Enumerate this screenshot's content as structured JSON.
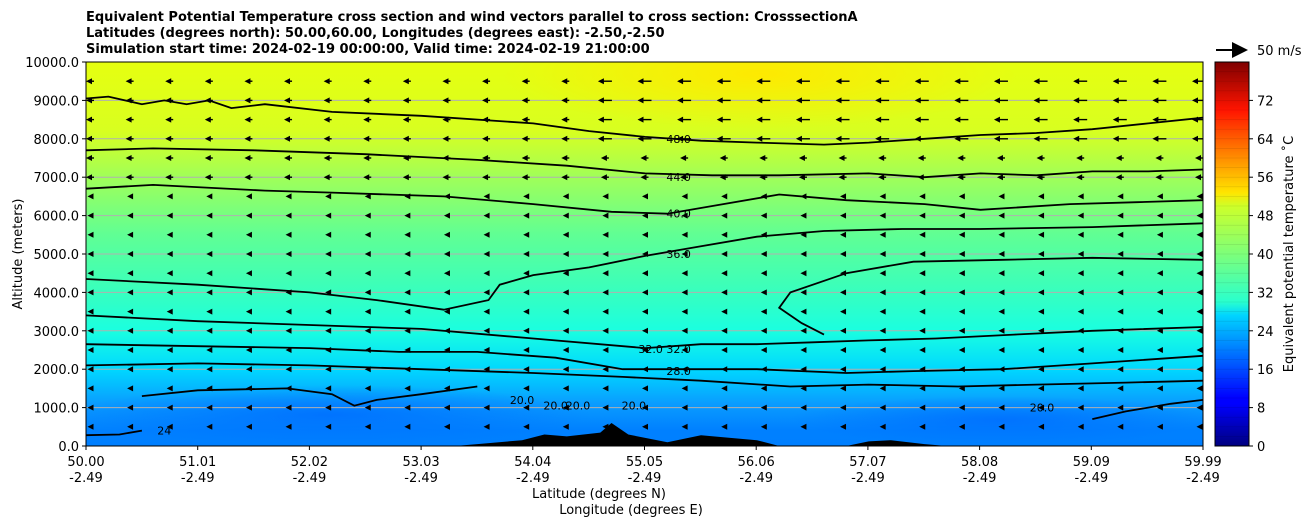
{
  "chart_data": {
    "type": "heatmap",
    "title_lines": [
      "Equivalent Potential Temperature cross section and wind vectors parallel to cross section: CrosssectionA",
      "Latitudes (degrees north): 50.00,60.00, Longitudes (degrees east): -2.50,-2.50",
      "Simulation start time: 2024-02-19 00:00:00, Valid time: 2024-02-19 21:00:00"
    ],
    "xlabel_lat": "Latitude (degrees N)",
    "xlabel_lon": "Longitude (degrees E)",
    "ylabel": "Altitude (meters)",
    "ylim": [
      0,
      10000
    ],
    "xlim": [
      50.0,
      59.99
    ],
    "grid": "horizontal",
    "x_tick_lat": [
      "50.00",
      "51.01",
      "52.02",
      "53.03",
      "54.04",
      "55.05",
      "56.06",
      "57.07",
      "58.08",
      "59.09",
      "59.99"
    ],
    "x_tick_lon": [
      "-2.49",
      "-2.49",
      "-2.49",
      "-2.49",
      "-2.49",
      "-2.49",
      "-2.49",
      "-2.49",
      "-2.49",
      "-2.49",
      "-2.49"
    ],
    "y_ticks": [
      "0.0",
      "1000.0",
      "2000.0",
      "3000.0",
      "4000.0",
      "5000.0",
      "6000.0",
      "7000.0",
      "8000.0",
      "9000.0",
      "10000.0"
    ],
    "y_tick_values": [
      0,
      1000,
      2000,
      3000,
      4000,
      5000,
      6000,
      7000,
      8000,
      9000,
      10000
    ],
    "colorbar": {
      "label": "Equivalent potential temperature ˚C",
      "range": [
        0,
        80
      ],
      "ticks": [
        "0",
        "8",
        "16",
        "24",
        "32",
        "40",
        "48",
        "56",
        "64",
        "72"
      ],
      "tick_values": [
        0,
        8,
        16,
        24,
        32,
        40,
        48,
        56,
        64,
        72
      ],
      "colormap": "jet"
    },
    "wind_key_label": "50 m/s",
    "contour_labels": [
      {
        "text": "48.0",
        "lat": 55.3,
        "alt": 8000
      },
      {
        "text": "44.0",
        "lat": 55.3,
        "alt": 7000
      },
      {
        "text": "40.0",
        "lat": 55.3,
        "alt": 6050
      },
      {
        "text": "36.0",
        "lat": 55.3,
        "alt": 5000
      },
      {
        "text": "32.0",
        "lat": 55.3,
        "alt": 2520
      },
      {
        "text": "32.0",
        "lat": 55.05,
        "alt": 2520
      },
      {
        "text": "28.0",
        "lat": 55.3,
        "alt": 1950
      },
      {
        "text": "20.0",
        "lat": 54.4,
        "alt": 1050
      },
      {
        "text": "20.0",
        "lat": 54.2,
        "alt": 1050
      },
      {
        "text": "20.0",
        "lat": 54.9,
        "alt": 1050
      },
      {
        "text": "20.0",
        "lat": 53.9,
        "alt": 1200
      },
      {
        "text": "20.0",
        "lat": 58.55,
        "alt": 1000
      },
      {
        "text": "24",
        "lat": 50.7,
        "alt": 400
      }
    ],
    "series": [
      {
        "level": 48,
        "points": [
          [
            50.0,
            9050
          ],
          [
            50.2,
            9100
          ],
          [
            50.5,
            8900
          ],
          [
            50.7,
            9000
          ],
          [
            50.9,
            8900
          ],
          [
            51.1,
            9000
          ],
          [
            51.3,
            8800
          ],
          [
            51.6,
            8900
          ],
          [
            52.2,
            8700
          ],
          [
            53.0,
            8600
          ],
          [
            54.0,
            8400
          ],
          [
            54.5,
            8200
          ],
          [
            55.0,
            8050
          ],
          [
            55.5,
            7950
          ],
          [
            56.0,
            7900
          ],
          [
            56.6,
            7850
          ],
          [
            57.0,
            7900
          ],
          [
            57.5,
            8000
          ],
          [
            58.0,
            8100
          ],
          [
            58.5,
            8150
          ],
          [
            59.0,
            8250
          ],
          [
            59.5,
            8400
          ],
          [
            59.99,
            8550
          ]
        ]
      },
      {
        "level": 44,
        "points": [
          [
            50.0,
            7700
          ],
          [
            50.6,
            7750
          ],
          [
            51.5,
            7700
          ],
          [
            52.5,
            7600
          ],
          [
            53.5,
            7450
          ],
          [
            54.3,
            7300
          ],
          [
            55.0,
            7100
          ],
          [
            55.6,
            7050
          ],
          [
            56.2,
            7050
          ],
          [
            57.0,
            7100
          ],
          [
            57.5,
            7000
          ],
          [
            58.0,
            7100
          ],
          [
            58.5,
            7050
          ],
          [
            59.0,
            7150
          ],
          [
            59.5,
            7150
          ],
          [
            59.99,
            7200
          ]
        ]
      },
      {
        "level": 40,
        "points": [
          [
            50.0,
            6700
          ],
          [
            50.6,
            6800
          ],
          [
            51.6,
            6650
          ],
          [
            52.2,
            6600
          ],
          [
            53.2,
            6500
          ],
          [
            54.0,
            6300
          ],
          [
            54.7,
            6100
          ],
          [
            55.2,
            6050
          ],
          [
            55.7,
            6300
          ],
          [
            56.2,
            6550
          ],
          [
            56.8,
            6400
          ],
          [
            57.5,
            6300
          ],
          [
            58.0,
            6150
          ],
          [
            58.8,
            6300
          ],
          [
            59.4,
            6350
          ],
          [
            59.99,
            6400
          ]
        ]
      },
      {
        "level": 36,
        "points": [
          [
            50.0,
            4350
          ],
          [
            51.0,
            4200
          ],
          [
            52.0,
            4000
          ],
          [
            52.6,
            3800
          ],
          [
            53.2,
            3550
          ],
          [
            53.6,
            3800
          ],
          [
            53.7,
            4200
          ],
          [
            54.0,
            4450
          ],
          [
            54.5,
            4650
          ],
          [
            55.0,
            4950
          ],
          [
            55.5,
            5200
          ],
          [
            56.0,
            5450
          ],
          [
            56.6,
            5600
          ],
          [
            57.3,
            5650
          ],
          [
            58.0,
            5650
          ],
          [
            59.0,
            5700
          ],
          [
            59.99,
            5800
          ]
        ]
      },
      {
        "level": 34,
        "points": [
          [
            56.6,
            2900
          ],
          [
            56.4,
            3200
          ],
          [
            56.2,
            3600
          ],
          [
            56.3,
            4000
          ],
          [
            56.8,
            4500
          ],
          [
            57.4,
            4800
          ],
          [
            58.2,
            4850
          ],
          [
            59.0,
            4900
          ],
          [
            59.99,
            4850
          ]
        ]
      },
      {
        "level": 32,
        "points": [
          [
            50.0,
            3400
          ],
          [
            51.0,
            3250
          ],
          [
            52.0,
            3150
          ],
          [
            53.0,
            3050
          ],
          [
            54.0,
            2800
          ],
          [
            55.0,
            2550
          ],
          [
            55.5,
            2650
          ],
          [
            56.0,
            2650
          ],
          [
            56.5,
            2700
          ],
          [
            57.0,
            2750
          ],
          [
            57.6,
            2800
          ],
          [
            58.3,
            2900
          ],
          [
            59.0,
            3000
          ],
          [
            59.99,
            3100
          ]
        ]
      },
      {
        "level": 28,
        "points": [
          [
            50.0,
            2650
          ],
          [
            51.0,
            2600
          ],
          [
            52.0,
            2550
          ],
          [
            52.8,
            2450
          ],
          [
            53.5,
            2450
          ],
          [
            54.2,
            2300
          ],
          [
            54.8,
            2000
          ],
          [
            55.4,
            2000
          ],
          [
            56.0,
            2000
          ],
          [
            56.8,
            1900
          ],
          [
            57.4,
            1950
          ],
          [
            58.2,
            2000
          ],
          [
            59.0,
            2150
          ],
          [
            59.99,
            2350
          ]
        ]
      },
      {
        "level": 26,
        "points": [
          [
            50.0,
            2100
          ],
          [
            51.0,
            2150
          ],
          [
            52.0,
            2100
          ],
          [
            53.0,
            2000
          ],
          [
            54.0,
            1900
          ],
          [
            54.8,
            1800
          ],
          [
            55.5,
            1700
          ],
          [
            56.3,
            1550
          ],
          [
            57.0,
            1600
          ],
          [
            57.8,
            1550
          ],
          [
            58.5,
            1600
          ],
          [
            59.3,
            1650
          ],
          [
            59.99,
            1700
          ]
        ]
      },
      {
        "level": 20,
        "points": [
          [
            50.5,
            1300
          ],
          [
            51.0,
            1450
          ],
          [
            51.8,
            1500
          ],
          [
            52.2,
            1350
          ],
          [
            52.4,
            1050
          ],
          [
            52.6,
            1200
          ],
          [
            53.0,
            1350
          ],
          [
            53.5,
            1550
          ]
        ]
      },
      {
        "level": 20,
        "points": [
          [
            59.0,
            700
          ],
          [
            59.3,
            900
          ],
          [
            59.7,
            1100
          ],
          [
            59.99,
            1200
          ]
        ]
      },
      {
        "level": 20,
        "points": [
          [
            50.0,
            280
          ],
          [
            50.3,
            300
          ],
          [
            50.5,
            400
          ]
        ]
      }
    ],
    "terrain": [
      [
        53.3,
        0
      ],
      [
        53.5,
        50
      ],
      [
        53.9,
        150
      ],
      [
        54.1,
        300
      ],
      [
        54.3,
        250
      ],
      [
        54.6,
        350
      ],
      [
        54.7,
        600
      ],
      [
        54.85,
        300
      ],
      [
        55.2,
        100
      ],
      [
        55.5,
        280
      ],
      [
        55.8,
        200
      ],
      [
        56.0,
        150
      ],
      [
        56.2,
        0
      ],
      [
        56.8,
        0
      ],
      [
        57.0,
        120
      ],
      [
        57.2,
        150
      ],
      [
        57.5,
        50
      ],
      [
        57.7,
        0
      ]
    ]
  }
}
